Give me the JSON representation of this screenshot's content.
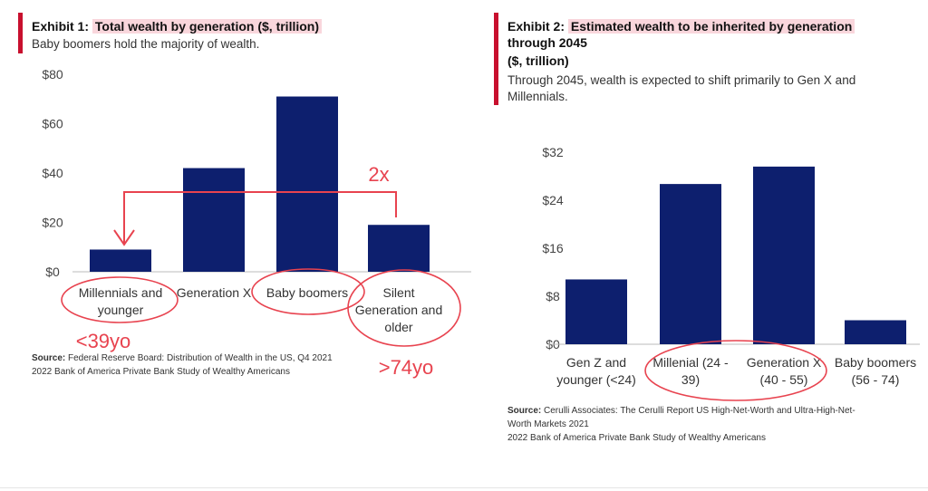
{
  "exhibit1": {
    "title_prefix": "Exhibit 1: ",
    "title_hl": "Total wealth by generation ($, trillion)",
    "subtitle": "Baby boomers hold the majority of wealth.",
    "source_label": "Source:",
    "source_lines": [
      "Federal Reserve Board: Distribution of Wealth in the US, Q4 2021",
      "2022 Bank of America Private Bank Study of Wealthy Americans"
    ],
    "annotations": {
      "multiplier": "2x",
      "young_age": "<39yo",
      "old_age": ">74yo"
    }
  },
  "exhibit2": {
    "title_prefix": "Exhibit 2: ",
    "title_hl": "Estimated wealth to be inherited by generation",
    "title_line2": "through 2045",
    "title_line3": "($, trillion)",
    "subtitle_lines": [
      "Through 2045, wealth is expected to shift primarily to Gen X and",
      "Millennials."
    ],
    "source_label": "Source:",
    "source_lines": [
      "Cerulli Associates: The Cerulli Report US High-Net-Worth and Ultra-High-Net-",
      "Worth Markets 2021",
      "2022 Bank of America Private Bank Study of Wealthy Americans"
    ]
  },
  "colors": {
    "bar": "#0d1f6e",
    "annotation": "#e8434f",
    "accent": "#c8102e"
  },
  "chart_data": [
    {
      "type": "bar",
      "title": "Total wealth by generation ($, trillion)",
      "categories": [
        [
          "Millennials and",
          "younger"
        ],
        [
          "Generation X"
        ],
        [
          "Baby boomers"
        ],
        [
          "Silent",
          "Generation and",
          "older"
        ]
      ],
      "values": [
        9,
        42,
        71,
        19
      ],
      "ylim": [
        0,
        80
      ],
      "yticks": [
        0,
        20,
        40,
        60,
        80
      ],
      "ytick_labels": [
        "$0",
        "$20",
        "$40",
        "$60",
        "$80"
      ],
      "grid": false
    },
    {
      "type": "bar",
      "title": "Estimated wealth to be inherited by generation through 2045 ($, trillion)",
      "categories": [
        [
          "Gen Z and",
          "younger (<24)"
        ],
        [
          "Millenial (24 -",
          "39)"
        ],
        [
          "Generation X",
          "(40 - 55)"
        ],
        [
          "Baby boomers",
          "(56 - 74)"
        ]
      ],
      "values": [
        10.8,
        26.7,
        29.6,
        4
      ],
      "ylim": [
        0,
        32
      ],
      "yticks": [
        0,
        8,
        16,
        24,
        32
      ],
      "ytick_labels": [
        "$0",
        "$8",
        "$16",
        "$24",
        "$32"
      ],
      "grid": false
    }
  ]
}
